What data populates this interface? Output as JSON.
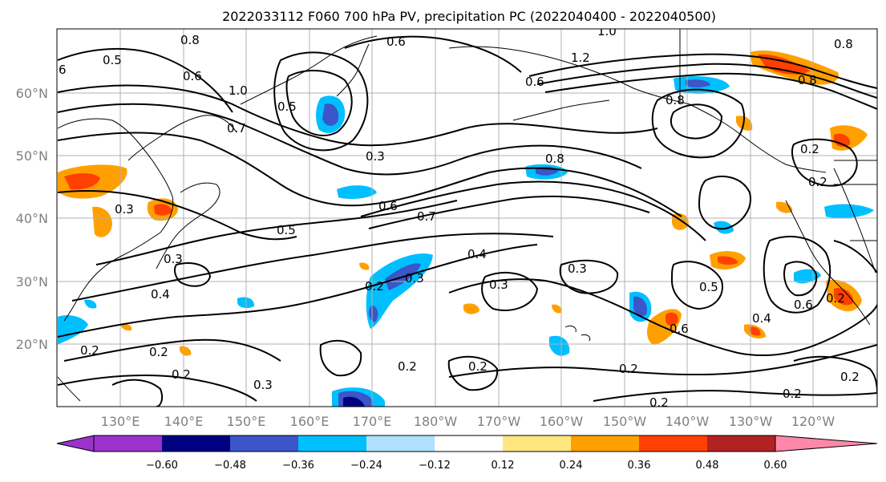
{
  "title": "2022033112 F060 700 hPa PV, precipitation PC (2022040400 - 2022040500)",
  "lat_labels": [
    "60°N",
    "50°N",
    "40°N",
    "30°N",
    "20°N"
  ],
  "lon_labels": [
    "130°E",
    "140°E",
    "150°E",
    "160°E",
    "170°E",
    "180°W",
    "170°W",
    "160°W",
    "150°W",
    "140°W",
    "130°W",
    "120°W"
  ],
  "colorbar": {
    "ticks": [
      "−0.60",
      "−0.48",
      "−0.36",
      "−0.24",
      "−0.12",
      "0.12",
      "0.24",
      "0.36",
      "0.48",
      "0.60"
    ],
    "colors": [
      "#9933cc",
      "#000080",
      "#3a56c8",
      "#00bfff",
      "#b0e0ff",
      "#ffffff",
      "#ffe680",
      "#ffa000",
      "#ff4000",
      "#b22222",
      "#ff88aa"
    ]
  },
  "contour_labels": [
    "0.8",
    "0.6",
    "1.0",
    "1.2",
    "0.5",
    "0.6",
    "0.8",
    "6",
    "0.6",
    "1.0",
    "0.5",
    "0.7",
    "0.8",
    "0.8",
    "0.2",
    "0.3",
    "0.8",
    "0.2",
    "0.3",
    "0.6",
    "0.7",
    "0.5",
    "0.3",
    "0.4",
    "0.3",
    "0.4",
    "0.2",
    "0.3",
    "0.3",
    "0.5",
    "0.6",
    "0.4",
    "0.6",
    "0.2",
    "0.2",
    "0.2",
    "0.2",
    "0.3",
    "0.2",
    "0.2",
    "0.2",
    "0.2",
    "0.2",
    "0.2"
  ]
}
